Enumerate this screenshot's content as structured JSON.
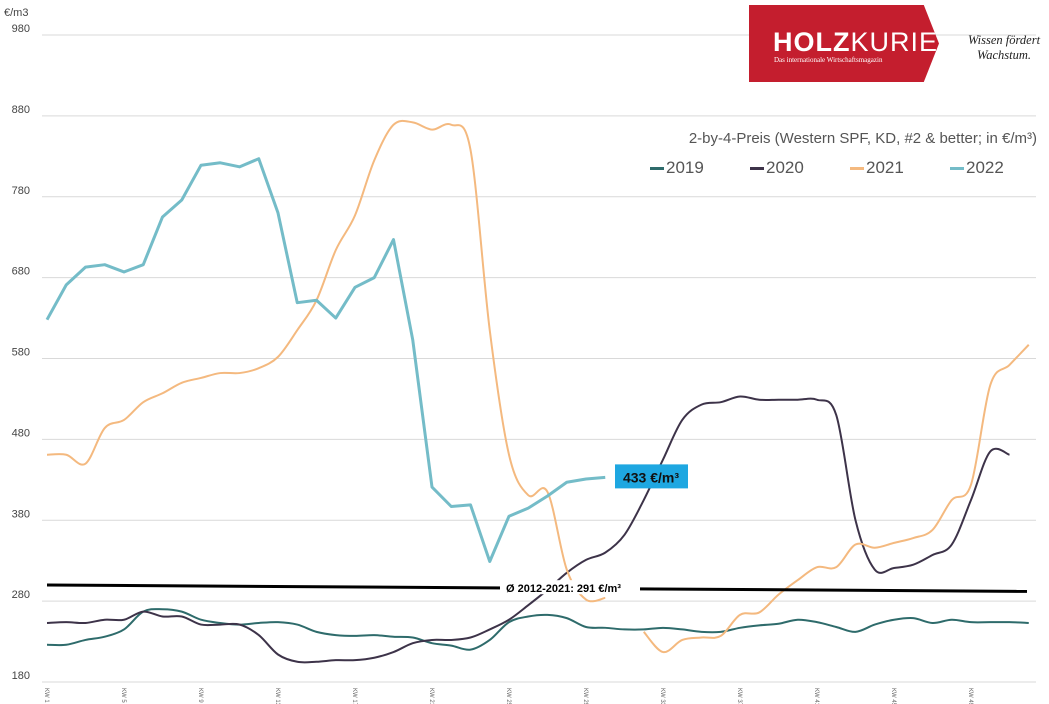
{
  "logo": {
    "brand_bold": "HOLZ",
    "brand_light": "KURIER",
    "tagline": "Das internationale Wirtschaftsmagazin",
    "slogan_line1": "Wissen fördert",
    "slogan_line2": "Wachstum.",
    "color": "#c41e2e"
  },
  "chart_data": {
    "type": "line",
    "title": "2-by-4-Preis (Western SPF, KD, #2 & better; in €/m³)",
    "ylabel": "€/m3",
    "ylim": [
      180,
      980
    ],
    "yticks": [
      180,
      280,
      380,
      480,
      580,
      680,
      780,
      880,
      980
    ],
    "grid": true,
    "legend_placement": "top-right",
    "x_tick_labels": [
      "KW 1",
      "KW 5",
      "KW 9",
      "KW 13",
      "KW 17",
      "KW 21",
      "KW 25",
      "KW 29",
      "KW 33",
      "KW 37",
      "KW 41",
      "KW 45",
      "KW 49"
    ],
    "x_tick_weeks": [
      1,
      5,
      9,
      13,
      17,
      21,
      25,
      29,
      33,
      37,
      41,
      45,
      49
    ],
    "x_range": [
      1,
      52
    ],
    "series": [
      {
        "name": "2019",
        "color": "#2e6b6b",
        "values": [
          226,
          226,
          232,
          236,
          245,
          267,
          270,
          267,
          257,
          253,
          251,
          253,
          254,
          251,
          242,
          238,
          237,
          238,
          236,
          235,
          228,
          225,
          220,
          232,
          254,
          261,
          263,
          259,
          248,
          247,
          245,
          245,
          247,
          245,
          242,
          242,
          247,
          250,
          252,
          257,
          254,
          248,
          242,
          251,
          257,
          259,
          253,
          257,
          254,
          254,
          254,
          253
        ]
      },
      {
        "name": "2020",
        "color": "#3d3349",
        "values": [
          253,
          254,
          253,
          257,
          257,
          267,
          261,
          261,
          251,
          251,
          251,
          238,
          214,
          205,
          205,
          207,
          207,
          210,
          217,
          228,
          232,
          232,
          235,
          245,
          257,
          275,
          294,
          315,
          331,
          340,
          362,
          405,
          455,
          504,
          523,
          526,
          533,
          529,
          529,
          529,
          529,
          510,
          380,
          319,
          321,
          325,
          337,
          350,
          405,
          465,
          461
        ]
      },
      {
        "name": "2021",
        "color": "#f4b97f",
        "values": [
          461,
          461,
          450,
          494,
          504,
          526,
          537,
          550,
          556,
          562,
          562,
          568,
          582,
          615,
          652,
          714,
          757,
          825,
          869,
          872,
          863,
          869,
          838,
          615,
          461,
          411,
          415,
          319,
          282,
          284,
          null,
          242,
          217,
          232,
          235,
          237,
          263,
          266,
          288,
          306,
          322,
          322,
          350,
          346,
          352,
          358,
          368,
          405,
          424,
          547,
          572,
          597
        ]
      },
      {
        "name": "2022",
        "color": "#74bcc8",
        "values": [
          628,
          671,
          693,
          696,
          687,
          696,
          755,
          776,
          819,
          822,
          817,
          827,
          760,
          649,
          652,
          630,
          668,
          680,
          727,
          603,
          421,
          397,
          399,
          329,
          385,
          395,
          410,
          427,
          431,
          433
        ]
      }
    ],
    "annotations": [
      {
        "text": "433 €/m³",
        "series": "2022",
        "week": 30,
        "value": 433,
        "color": "#1ea7e1"
      },
      {
        "text": "Ø 2012-2021: 291 €/m³",
        "type": "reference-line",
        "start_value": 300,
        "end_value": 292,
        "color": "#000000"
      }
    ]
  }
}
